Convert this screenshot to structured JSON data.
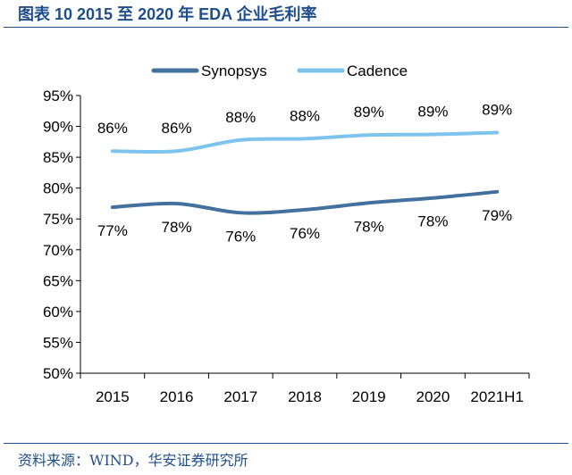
{
  "header": {
    "title": "图表 10 2015 至 2020 年 EDA 企业毛利率"
  },
  "footer": {
    "source": "资料来源：WIND，华安证券研究所"
  },
  "colors": {
    "accent": "#1f4e8c",
    "synopsys": "#41719c",
    "cadence": "#7cc3ee",
    "axis": "#000000"
  },
  "chart_data": {
    "type": "line",
    "title": "",
    "xlabel": "",
    "ylabel": "",
    "categories": [
      "2015",
      "2016",
      "2017",
      "2018",
      "2019",
      "2020",
      "2021H1"
    ],
    "ylim": [
      50,
      95
    ],
    "yticks": [
      50,
      55,
      60,
      65,
      70,
      75,
      80,
      85,
      90,
      95
    ],
    "ytick_labels": [
      "50%",
      "55%",
      "60%",
      "65%",
      "70%",
      "75%",
      "80%",
      "85%",
      "90%",
      "95%"
    ],
    "legend_position": "top",
    "grid": false,
    "series": [
      {
        "name": "Synopsys",
        "color": "#41719c",
        "values": [
          76.9,
          77.5,
          76.0,
          76.5,
          77.6,
          78.4,
          79.4
        ],
        "labels": [
          "77%",
          "78%",
          "76%",
          "76%",
          "78%",
          "78%",
          "79%"
        ],
        "label_position": "below"
      },
      {
        "name": "Cadence",
        "color": "#7cc3ee",
        "values": [
          86.0,
          86.0,
          87.8,
          88.0,
          88.6,
          88.7,
          89.0
        ],
        "labels": [
          "86%",
          "86%",
          "88%",
          "88%",
          "89%",
          "89%",
          "89%"
        ],
        "label_position": "above"
      }
    ]
  }
}
